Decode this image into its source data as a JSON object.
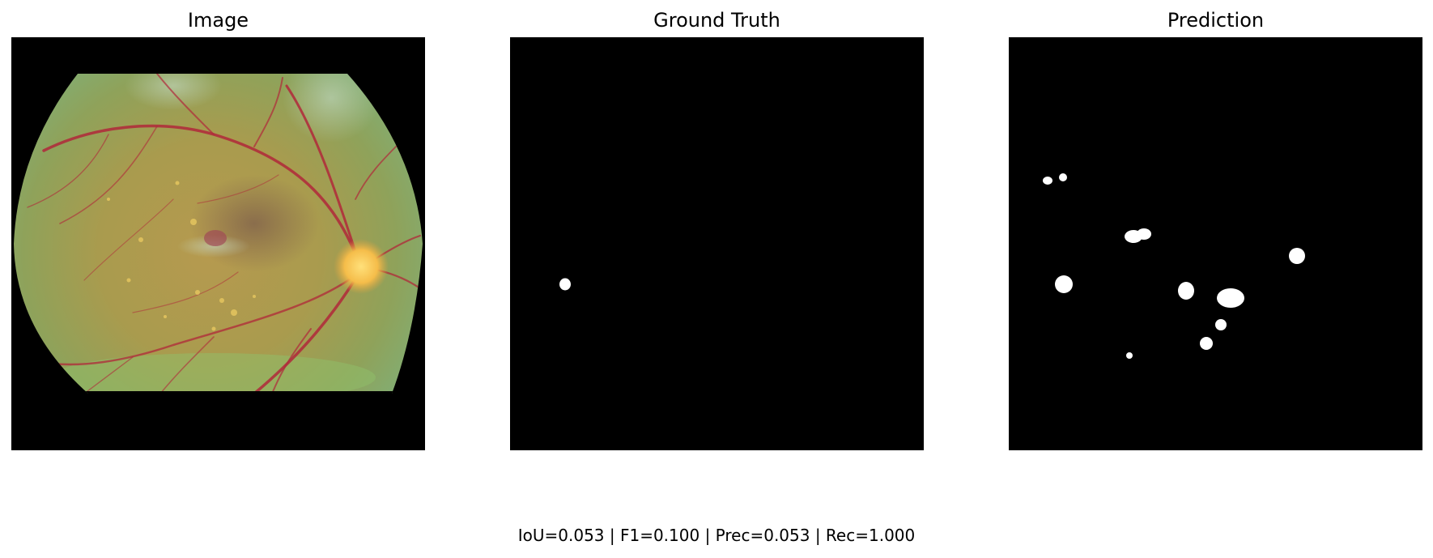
{
  "panels": {
    "image": {
      "title": "Image"
    },
    "ground_truth": {
      "title": "Ground Truth"
    },
    "prediction": {
      "title": "Prediction"
    }
  },
  "metrics": {
    "text": "IoU=0.053 | F1=0.100 | Prec=0.053 | Rec=1.000"
  },
  "colors": {
    "background": "#ffffff",
    "mask_background": "#000000",
    "mask_foreground": "#ffffff",
    "fundus_base": "#9c9a4e",
    "vessel": "#b0283a",
    "optic_disc": "#f2c04a"
  }
}
